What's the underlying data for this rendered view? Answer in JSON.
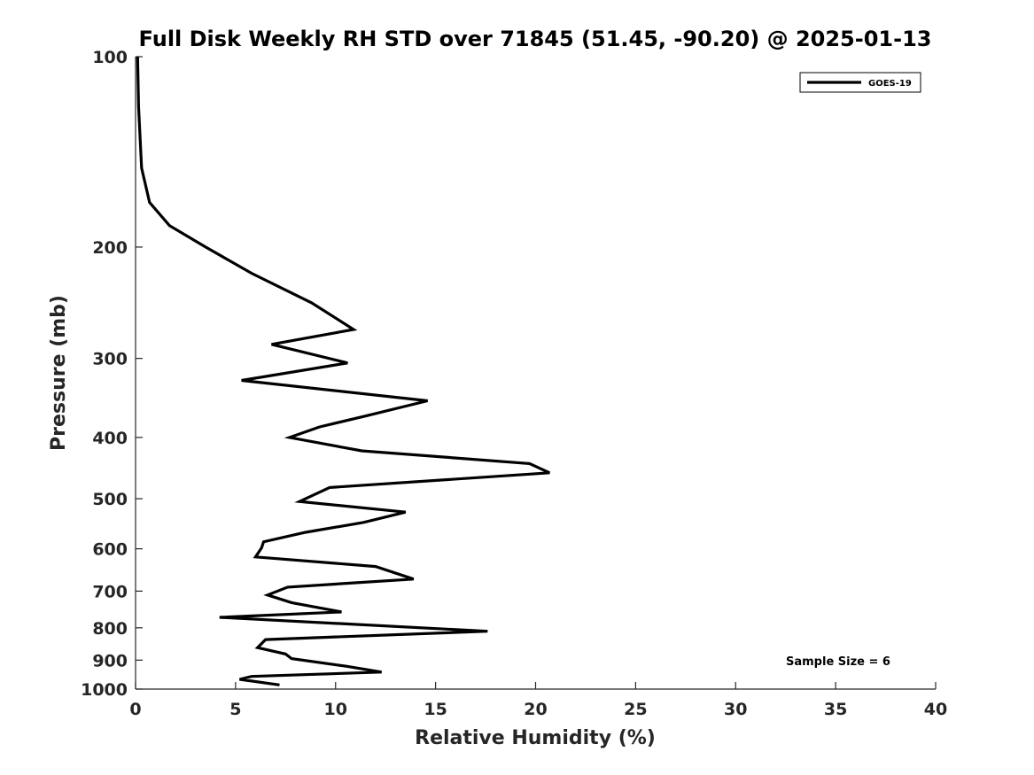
{
  "chart_data": {
    "type": "line",
    "title": "Full Disk Weekly RH STD over 71845 (51.45, -90.20) @ 2025-01-13",
    "xlabel": "Relative Humidity (%)",
    "ylabel": "Pressure (mb)",
    "xlim": [
      0,
      40
    ],
    "ylim": [
      100,
      1000
    ],
    "yscale": "log",
    "y_reversed": true,
    "x_ticks": [
      0,
      5,
      10,
      15,
      20,
      25,
      30,
      35,
      40
    ],
    "y_ticks": [
      100,
      200,
      300,
      400,
      500,
      600,
      700,
      800,
      900,
      1000
    ],
    "x_tick_labels": [
      "0",
      "5",
      "10",
      "15",
      "20",
      "25",
      "30",
      "35",
      "40"
    ],
    "y_tick_labels": [
      "100",
      "200",
      "300",
      "400",
      "500",
      "600",
      "700",
      "800",
      "900",
      "1000"
    ],
    "legend_position": "top-right",
    "series": [
      {
        "name": "GOES-19",
        "color": "#000000",
        "x": [
          0.1,
          0.15,
          0.3,
          0.7,
          1.7,
          3.5,
          5.8,
          8.8,
          10.9,
          6.8,
          10.6,
          5.3,
          14.6,
          11.5,
          9.2,
          7.7,
          11.3,
          19.7,
          20.7,
          9.7,
          8.2,
          13.5,
          11.4,
          8.5,
          6.4,
          6.3,
          6.0,
          12.0,
          13.9,
          7.6,
          6.6,
          7.8,
          10.3,
          4.2,
          17.6,
          6.5,
          6.1,
          7.5,
          7.8,
          10.5,
          12.3,
          5.8,
          5.2,
          7.2
        ],
        "y": [
          100,
          120,
          150,
          170,
          185,
          200,
          220,
          245,
          270,
          285,
          305,
          325,
          350,
          370,
          385,
          400,
          420,
          440,
          455,
          480,
          505,
          525,
          545,
          565,
          585,
          598,
          618,
          640,
          670,
          690,
          710,
          730,
          755,
          770,
          810,
          835,
          860,
          880,
          895,
          920,
          940,
          955,
          965,
          985
        ]
      }
    ],
    "annotations": [
      "Sample Size = 6"
    ]
  }
}
